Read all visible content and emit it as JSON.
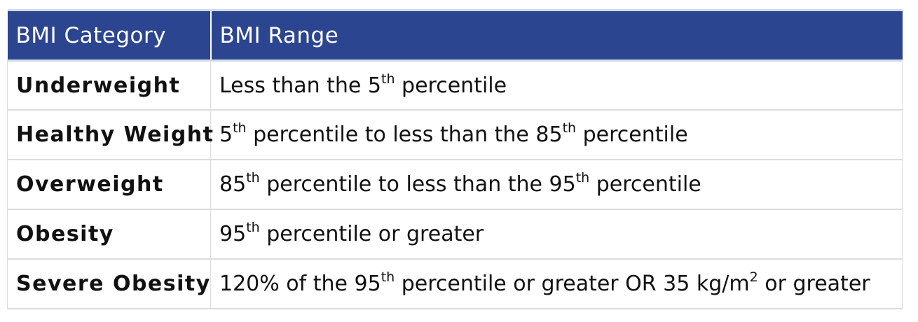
{
  "header": {
    "category_label": "BMI Category",
    "range_label": "BMI Range"
  },
  "rows": [
    {
      "category": "Underweight",
      "range": [
        {
          "t": "Less than the 5"
        },
        {
          "sup": "th"
        },
        {
          "t": " percentile"
        }
      ]
    },
    {
      "category": "Healthy Weight",
      "range": [
        {
          "t": "5"
        },
        {
          "sup": "th"
        },
        {
          "t": " percentile to less than the 85"
        },
        {
          "sup": "th"
        },
        {
          "t": " percentile"
        }
      ]
    },
    {
      "category": "Overweight",
      "range": [
        {
          "t": "85"
        },
        {
          "sup": "th"
        },
        {
          "t": " percentile to less than the 95"
        },
        {
          "sup": "th"
        },
        {
          "t": " percentile"
        }
      ]
    },
    {
      "category": "Obesity",
      "range": [
        {
          "t": "95"
        },
        {
          "sup": "th"
        },
        {
          "t": " percentile or greater"
        }
      ]
    },
    {
      "category": "Severe Obesity",
      "range": [
        {
          "t": "120% of the 95"
        },
        {
          "sup": "th"
        },
        {
          "t": " percentile or greater OR 35 kg/m"
        },
        {
          "sup": "2"
        },
        {
          "t": " or greater"
        }
      ]
    }
  ]
}
